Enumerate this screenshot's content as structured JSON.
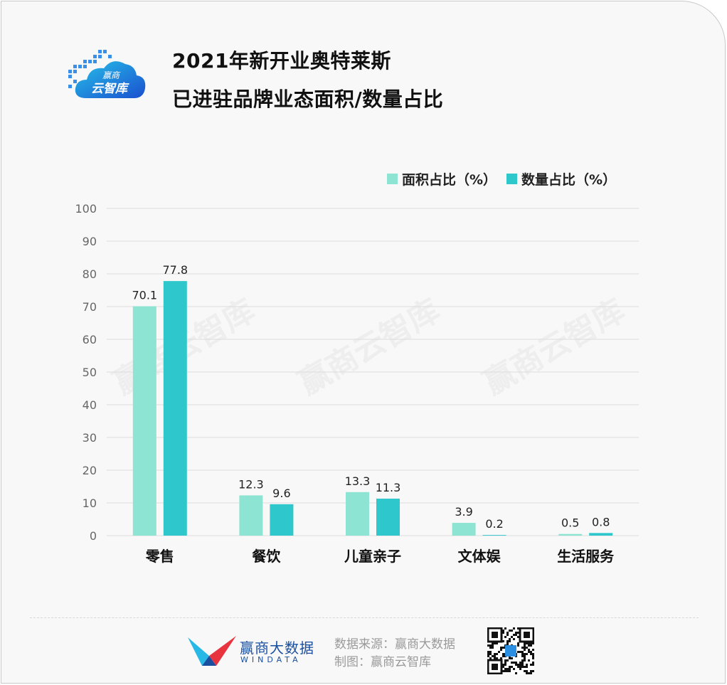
{
  "title": {
    "line1": "2021年新开业奥特莱斯",
    "line2": "已进驻品牌业态面积/数量占比"
  },
  "logo": {
    "top_text": "赢商",
    "main_text": "云智库"
  },
  "colors": {
    "series1": "#8ee4d2",
    "series2": "#2ec7cc",
    "grid": "#dcdcdc",
    "axis_text": "#666666"
  },
  "watermark": "赢商云智库",
  "chart_data": {
    "type": "bar",
    "categories": [
      "零售",
      "餐饮",
      "儿童亲子",
      "文体娱",
      "生活服务"
    ],
    "series": [
      {
        "name": "面积占比（%）",
        "values": [
          70.1,
          12.3,
          13.3,
          3.9,
          0.5
        ]
      },
      {
        "name": "数量占比（%）",
        "values": [
          77.8,
          9.6,
          11.3,
          0.2,
          0.8
        ]
      }
    ],
    "data_labels": [
      [
        "70.1",
        "12.3",
        "13.3",
        "3.9",
        "0.5"
      ],
      [
        "77.8",
        "9.6",
        "11.3",
        "0.2",
        "0.8"
      ]
    ],
    "yticks": [
      "0",
      "10",
      "20",
      "30",
      "40",
      "50",
      "60",
      "70",
      "80",
      "90",
      "100"
    ],
    "ylim": [
      0,
      100
    ],
    "grid": true,
    "legend_position": "top-right"
  },
  "footer": {
    "brand_name": "赢商大数据",
    "brand_sub": "WINDATA",
    "source": "数据来源：赢商大数据",
    "made_by": "制图：赢商云智库"
  }
}
